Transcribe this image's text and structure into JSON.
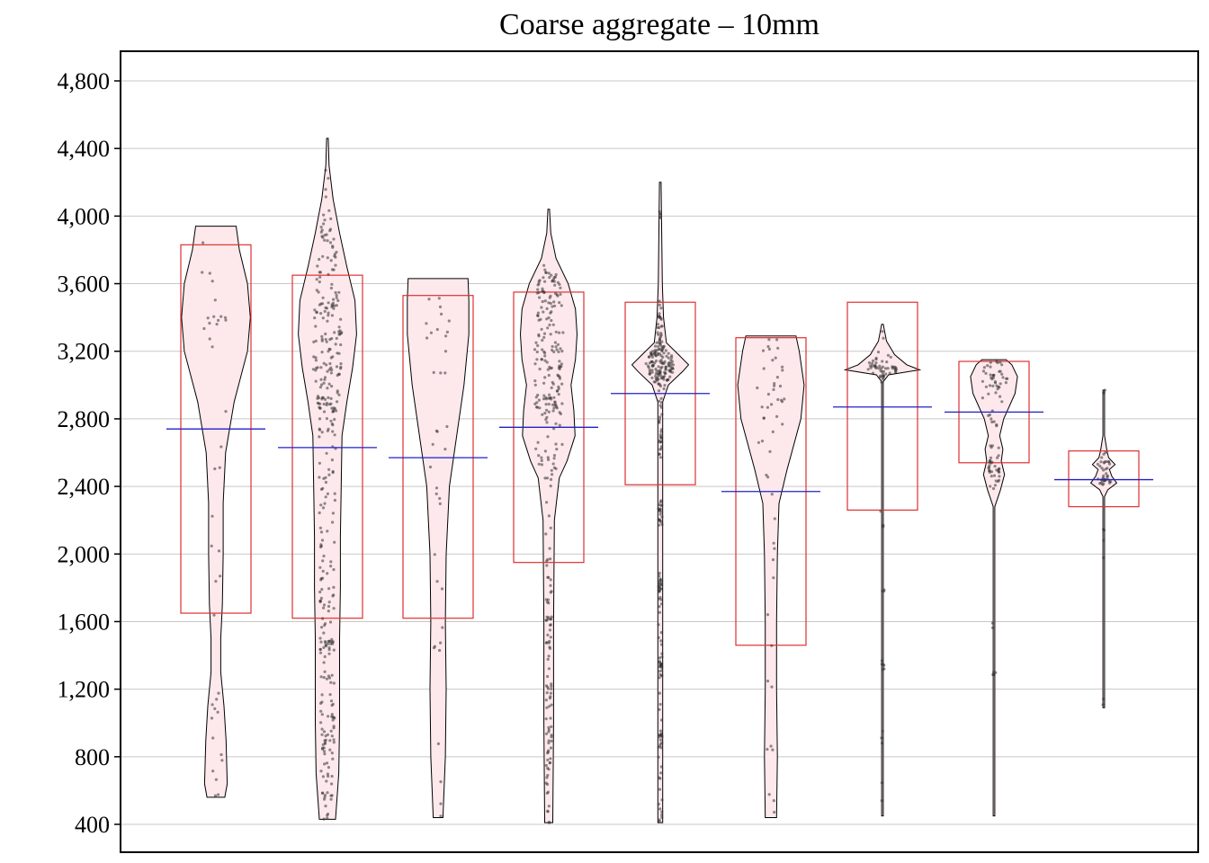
{
  "chart_data": {
    "type": "violin",
    "title": "Coarse aggregate – 10mm",
    "xlabel": "",
    "ylabel": "",
    "ylim": [
      300,
      4980
    ],
    "yticks": [
      400,
      800,
      1200,
      1600,
      2000,
      2400,
      2800,
      3200,
      3600,
      4000,
      4400,
      4800
    ],
    "ytick_labels": [
      "400",
      "800",
      "1,200",
      "1,600",
      "2,000",
      "2,400",
      "2,800",
      "3,200",
      "3,600",
      "4,000",
      "4,400",
      "4,800"
    ],
    "grid": "horizontal",
    "legend": "none",
    "colors": {
      "violin_fill": "#fde8ec",
      "violin_stroke": "#000000",
      "box_stroke": "#e03030",
      "mean_line": "#2020c8",
      "points": "#333333",
      "grid": "#c8c8c8"
    },
    "groups": [
      {
        "ymin": 560,
        "ymax": 3940,
        "mean": 2740,
        "box_low": 1650,
        "box_high": 3830,
        "shape": [
          [
            560,
            0.22
          ],
          [
            640,
            0.28
          ],
          [
            900,
            0.25
          ],
          [
            1100,
            0.2
          ],
          [
            1300,
            0.12
          ],
          [
            1500,
            0.12
          ],
          [
            1700,
            0.16
          ],
          [
            2000,
            0.18
          ],
          [
            2300,
            0.18
          ],
          [
            2600,
            0.24
          ],
          [
            2900,
            0.45
          ],
          [
            3200,
            0.78
          ],
          [
            3400,
            0.85
          ],
          [
            3600,
            0.78
          ],
          [
            3800,
            0.58
          ],
          [
            3940,
            0.5
          ]
        ],
        "clusters": [
          [
            3380,
            25,
            6
          ],
          [
            3300,
            80,
            4
          ],
          [
            3600,
            200,
            6
          ],
          [
            2550,
            300,
            4
          ],
          [
            2100,
            250,
            3
          ],
          [
            1700,
            150,
            3
          ],
          [
            1100,
            60,
            6
          ],
          [
            900,
            200,
            4
          ],
          [
            650,
            60,
            3
          ]
        ]
      },
      {
        "ymin": 430,
        "ymax": 4460,
        "mean": 2630,
        "box_low": 1620,
        "box_high": 3650,
        "shape": [
          [
            430,
            0.2
          ],
          [
            700,
            0.28
          ],
          [
            1000,
            0.3
          ],
          [
            1300,
            0.3
          ],
          [
            1500,
            0.3
          ],
          [
            1800,
            0.32
          ],
          [
            2100,
            0.32
          ],
          [
            2400,
            0.34
          ],
          [
            2700,
            0.36
          ],
          [
            2900,
            0.48
          ],
          [
            3100,
            0.62
          ],
          [
            3300,
            0.72
          ],
          [
            3500,
            0.68
          ],
          [
            3700,
            0.48
          ],
          [
            3900,
            0.3
          ],
          [
            4100,
            0.14
          ],
          [
            4300,
            0.04
          ],
          [
            4460,
            0.02
          ]
        ],
        "clusters": [
          [
            3400,
            250,
            110
          ],
          [
            2900,
            80,
            25
          ],
          [
            3100,
            80,
            20
          ],
          [
            2500,
            350,
            40
          ],
          [
            1900,
            300,
            40
          ],
          [
            1450,
            60,
            25
          ],
          [
            1200,
            150,
            25
          ],
          [
            950,
            80,
            25
          ],
          [
            700,
            80,
            15
          ],
          [
            500,
            80,
            12
          ],
          [
            3900,
            150,
            12
          ],
          [
            4150,
            100,
            4
          ]
        ]
      },
      {
        "ymin": 440,
        "ymax": 3630,
        "mean": 2570,
        "box_low": 1620,
        "box_high": 3530,
        "shape": [
          [
            440,
            0.12
          ],
          [
            800,
            0.18
          ],
          [
            1200,
            0.2
          ],
          [
            1600,
            0.18
          ],
          [
            2000,
            0.2
          ],
          [
            2400,
            0.28
          ],
          [
            2700,
            0.46
          ],
          [
            3000,
            0.64
          ],
          [
            3300,
            0.76
          ],
          [
            3500,
            0.76
          ],
          [
            3630,
            0.74
          ]
        ],
        "clusters": [
          [
            3400,
            100,
            10
          ],
          [
            3000,
            200,
            8
          ],
          [
            2500,
            150,
            6
          ],
          [
            2000,
            200,
            4
          ],
          [
            1420,
            30,
            3
          ],
          [
            1200,
            200,
            3
          ],
          [
            700,
            200,
            3
          ]
        ]
      },
      {
        "ymin": 410,
        "ymax": 4040,
        "mean": 2750,
        "box_low": 1950,
        "box_high": 3550,
        "shape": [
          [
            410,
            0.1
          ],
          [
            1000,
            0.12
          ],
          [
            1600,
            0.12
          ],
          [
            2200,
            0.14
          ],
          [
            2450,
            0.26
          ],
          [
            2550,
            0.45
          ],
          [
            2700,
            0.65
          ],
          [
            2850,
            0.62
          ],
          [
            3000,
            0.55
          ],
          [
            3150,
            0.66
          ],
          [
            3300,
            0.7
          ],
          [
            3450,
            0.66
          ],
          [
            3600,
            0.48
          ],
          [
            3750,
            0.18
          ],
          [
            3900,
            0.05
          ],
          [
            4040,
            0.02
          ]
        ],
        "clusters": [
          [
            3400,
            150,
            60
          ],
          [
            3100,
            100,
            40
          ],
          [
            2850,
            60,
            30
          ],
          [
            2950,
            50,
            20
          ],
          [
            2550,
            80,
            25
          ],
          [
            3600,
            50,
            20
          ],
          [
            1800,
            250,
            30
          ],
          [
            1300,
            200,
            25
          ],
          [
            900,
            150,
            20
          ],
          [
            600,
            150,
            15
          ]
        ]
      },
      {
        "ymin": 410,
        "ymax": 4200,
        "mean": 2950,
        "box_low": 2410,
        "box_high": 3490,
        "shape": [
          [
            410,
            0.06
          ],
          [
            2900,
            0.06
          ],
          [
            3000,
            0.2
          ],
          [
            3080,
            0.55
          ],
          [
            3120,
            0.7
          ],
          [
            3180,
            0.45
          ],
          [
            3250,
            0.15
          ],
          [
            3400,
            0.08
          ],
          [
            3600,
            0.05
          ],
          [
            4200,
            0.02
          ]
        ],
        "clusters": [
          [
            3120,
            60,
            130
          ],
          [
            3350,
            80,
            30
          ],
          [
            2850,
            100,
            15
          ],
          [
            2650,
            60,
            12
          ],
          [
            2230,
            50,
            20
          ],
          [
            1800,
            60,
            20
          ],
          [
            1350,
            40,
            20
          ],
          [
            900,
            60,
            15
          ],
          [
            600,
            150,
            15
          ],
          [
            4010,
            15,
            5
          ],
          [
            1500,
            300,
            15
          ]
        ]
      },
      {
        "ymin": 440,
        "ymax": 3290,
        "mean": 2370,
        "box_low": 1460,
        "box_high": 3280,
        "shape": [
          [
            440,
            0.14
          ],
          [
            800,
            0.16
          ],
          [
            1200,
            0.14
          ],
          [
            1600,
            0.14
          ],
          [
            2000,
            0.16
          ],
          [
            2300,
            0.2
          ],
          [
            2500,
            0.4
          ],
          [
            2800,
            0.74
          ],
          [
            3000,
            0.82
          ],
          [
            3200,
            0.7
          ],
          [
            3290,
            0.62
          ]
        ],
        "clusters": [
          [
            3050,
            150,
            25
          ],
          [
            2800,
            150,
            8
          ],
          [
            2400,
            100,
            4
          ],
          [
            1950,
            150,
            4
          ],
          [
            1250,
            150,
            4
          ],
          [
            880,
            20,
            3
          ],
          [
            600,
            100,
            3
          ]
        ]
      },
      {
        "ymin": 450,
        "ymax": 3360,
        "mean": 2870,
        "box_low": 2260,
        "box_high": 3490,
        "shape": [
          [
            450,
            0.02
          ],
          [
            3020,
            0.02
          ],
          [
            3060,
            0.15
          ],
          [
            3090,
            0.92
          ],
          [
            3120,
            0.6
          ],
          [
            3180,
            0.3
          ],
          [
            3260,
            0.1
          ],
          [
            3360,
            0.02
          ]
        ],
        "clusters": [
          [
            3100,
            40,
            45
          ],
          [
            3220,
            80,
            8
          ],
          [
            1340,
            30,
            6
          ],
          [
            1780,
            20,
            3
          ],
          [
            2200,
            50,
            3
          ],
          [
            900,
            100,
            3
          ],
          [
            600,
            100,
            2
          ]
        ]
      },
      {
        "ymin": 450,
        "ymax": 3150,
        "mean": 2840,
        "box_low": 2540,
        "box_high": 3140,
        "shape": [
          [
            450,
            0.02
          ],
          [
            2280,
            0.02
          ],
          [
            2380,
            0.16
          ],
          [
            2470,
            0.26
          ],
          [
            2550,
            0.18
          ],
          [
            2620,
            0.22
          ],
          [
            2700,
            0.14
          ],
          [
            2800,
            0.24
          ],
          [
            2950,
            0.52
          ],
          [
            3050,
            0.58
          ],
          [
            3120,
            0.44
          ],
          [
            3150,
            0.3
          ]
        ],
        "clusters": [
          [
            3030,
            60,
            40
          ],
          [
            2470,
            40,
            20
          ],
          [
            2580,
            50,
            15
          ],
          [
            2800,
            50,
            8
          ],
          [
            1300,
            40,
            4
          ],
          [
            1600,
            50,
            2
          ]
        ]
      },
      {
        "ymin": 1090,
        "ymax": 2970,
        "mean": 2440,
        "box_low": 2280,
        "box_high": 2610,
        "shape": [
          [
            1090,
            0.02
          ],
          [
            2340,
            0.02
          ],
          [
            2380,
            0.1
          ],
          [
            2420,
            0.32
          ],
          [
            2460,
            0.2
          ],
          [
            2500,
            0.14
          ],
          [
            2530,
            0.28
          ],
          [
            2570,
            0.12
          ],
          [
            2610,
            0.08
          ],
          [
            2700,
            0.02
          ],
          [
            2970,
            0.02
          ]
        ],
        "clusters": [
          [
            2430,
            20,
            20
          ],
          [
            2530,
            30,
            12
          ],
          [
            2600,
            30,
            5
          ],
          [
            2960,
            10,
            3
          ],
          [
            2140,
            60,
            3
          ],
          [
            1800,
            100,
            1
          ],
          [
            1100,
            40,
            2
          ]
        ]
      }
    ]
  }
}
